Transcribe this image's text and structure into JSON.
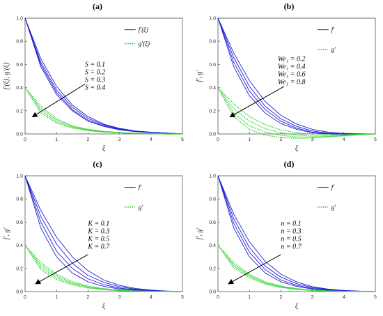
{
  "colors": {
    "f_series": "#1f1fd6",
    "g_series": "#35d335",
    "axis": "#555555",
    "arrow": "#000000"
  },
  "chart_data": [
    {
      "type": "line",
      "panel_label": "(a)",
      "xlabel": "ξ",
      "ylabel": "f′(ξ), g′(ξ)",
      "xlim": [
        0,
        5
      ],
      "ylim": [
        0,
        1.0
      ],
      "xticks": [
        "0",
        "1",
        "2",
        "3",
        "4",
        "5"
      ],
      "yticks": [
        "0.0",
        "0.2",
        "0.4",
        "0.6",
        "0.8",
        "1.0"
      ],
      "legend": [
        {
          "label": "f′(ξ)",
          "style": "solid"
        },
        {
          "label": "g′(ξ)",
          "style": "dotted"
        }
      ],
      "param_labels": [
        "S = 0.1",
        "S = 0.2",
        "S = 0.3",
        "S = 0.4"
      ],
      "series": [
        {
          "group": "f",
          "param": 0.1,
          "x": [
            0,
            0.5,
            1,
            1.5,
            2,
            2.5,
            3,
            3.5,
            4,
            4.5,
            5
          ],
          "y": [
            1.0,
            0.58,
            0.34,
            0.2,
            0.11,
            0.065,
            0.035,
            0.02,
            0.012,
            0.006,
            0.0
          ]
        },
        {
          "group": "f",
          "param": 0.2,
          "x": [
            0,
            0.5,
            1,
            1.5,
            2,
            2.5,
            3,
            3.5,
            4,
            4.5,
            5
          ],
          "y": [
            1.0,
            0.6,
            0.36,
            0.21,
            0.12,
            0.07,
            0.04,
            0.022,
            0.013,
            0.007,
            0.0
          ]
        },
        {
          "group": "f",
          "param": 0.3,
          "x": [
            0,
            0.5,
            1,
            1.5,
            2,
            2.5,
            3,
            3.5,
            4,
            4.5,
            5
          ],
          "y": [
            1.0,
            0.62,
            0.38,
            0.23,
            0.135,
            0.078,
            0.044,
            0.024,
            0.014,
            0.007,
            0.0
          ]
        },
        {
          "group": "f",
          "param": 0.4,
          "x": [
            0,
            0.5,
            1,
            1.5,
            2,
            2.5,
            3,
            3.5,
            4,
            4.5,
            5
          ],
          "y": [
            1.0,
            0.65,
            0.41,
            0.25,
            0.15,
            0.085,
            0.048,
            0.026,
            0.015,
            0.008,
            0.0
          ]
        },
        {
          "group": "g",
          "param": 0.1,
          "x": [
            0,
            0.5,
            1,
            1.5,
            2,
            2.5,
            3,
            3.5,
            4,
            4.5,
            5
          ],
          "y": [
            0.4,
            0.24,
            0.13,
            0.07,
            0.04,
            0.022,
            0.012,
            0.006,
            0.003,
            0.0,
            0.0
          ]
        },
        {
          "group": "g",
          "param": 0.2,
          "x": [
            0,
            0.5,
            1,
            1.5,
            2,
            2.5,
            3,
            3.5,
            4,
            4.5,
            5
          ],
          "y": [
            0.4,
            0.22,
            0.12,
            0.065,
            0.036,
            0.02,
            0.011,
            0.005,
            0.003,
            0.0,
            0.0
          ]
        },
        {
          "group": "g",
          "param": 0.3,
          "x": [
            0,
            0.5,
            1,
            1.5,
            2,
            2.5,
            3,
            3.5,
            4,
            4.5,
            5
          ],
          "y": [
            0.4,
            0.2,
            0.105,
            0.058,
            0.032,
            0.018,
            0.01,
            0.005,
            0.002,
            0.0,
            0.0
          ]
        },
        {
          "group": "g",
          "param": 0.4,
          "x": [
            0,
            0.5,
            1,
            1.5,
            2,
            2.5,
            3,
            3.5,
            4,
            4.5,
            5
          ],
          "y": [
            0.4,
            0.18,
            0.095,
            0.052,
            0.028,
            0.016,
            0.009,
            0.004,
            0.002,
            0.0,
            0.0
          ]
        }
      ]
    },
    {
      "type": "line",
      "panel_label": "(b)",
      "xlabel": "ξ",
      "ylabel": "f′, g′",
      "xlim": [
        0,
        5
      ],
      "ylim": [
        0,
        1.0
      ],
      "xticks": [
        "0",
        "1",
        "2",
        "3",
        "4",
        "5"
      ],
      "yticks": [
        "0.0",
        "0.2",
        "0.4",
        "0.6",
        "0.8",
        "1.0"
      ],
      "legend": [
        {
          "label": "f′",
          "style": "solid"
        },
        {
          "label": "g′",
          "style": "dotted"
        }
      ],
      "param_labels": [
        "We₁ = 0.2",
        "We₁ = 0.4",
        "We₁ = 0.6",
        "We₁ = 0.8"
      ],
      "series": [
        {
          "group": "f",
          "param": 0.2,
          "x": [
            0,
            0.5,
            1,
            1.5,
            2,
            2.5,
            3,
            3.5,
            4,
            4.5,
            5
          ],
          "y": [
            1.0,
            0.58,
            0.33,
            0.18,
            0.09,
            0.04,
            0.01,
            0.0,
            -0.005,
            -0.003,
            0.0
          ]
        },
        {
          "group": "f",
          "param": 0.4,
          "x": [
            0,
            0.5,
            1,
            1.5,
            2,
            2.5,
            3,
            3.5,
            4,
            4.5,
            5
          ],
          "y": [
            1.0,
            0.62,
            0.37,
            0.21,
            0.11,
            0.05,
            0.015,
            0.002,
            -0.003,
            -0.002,
            0.0
          ]
        },
        {
          "group": "f",
          "param": 0.6,
          "x": [
            0,
            0.5,
            1,
            1.5,
            2,
            2.5,
            3,
            3.5,
            4,
            4.5,
            5
          ],
          "y": [
            1.0,
            0.66,
            0.41,
            0.24,
            0.13,
            0.065,
            0.025,
            0.007,
            0.0,
            0.0,
            0.0
          ]
        },
        {
          "group": "f",
          "param": 0.8,
          "x": [
            0,
            0.5,
            1,
            1.5,
            2,
            2.5,
            3,
            3.5,
            4,
            4.5,
            5
          ],
          "y": [
            1.0,
            0.7,
            0.46,
            0.28,
            0.16,
            0.085,
            0.04,
            0.015,
            0.005,
            0.002,
            0.0
          ]
        },
        {
          "group": "g",
          "param": 0.2,
          "x": [
            0,
            0.5,
            1,
            1.5,
            2,
            2.5,
            3,
            3.5,
            4,
            4.5,
            5
          ],
          "y": [
            0.4,
            0.26,
            0.15,
            0.08,
            0.035,
            0.01,
            0.0,
            -0.005,
            -0.004,
            -0.002,
            0.0
          ]
        },
        {
          "group": "g",
          "param": 0.4,
          "x": [
            0,
            0.5,
            1,
            1.5,
            2,
            2.5,
            3,
            3.5,
            4,
            4.5,
            5
          ],
          "y": [
            0.4,
            0.22,
            0.11,
            0.045,
            0.01,
            -0.01,
            -0.018,
            -0.016,
            -0.01,
            -0.004,
            0.0
          ]
        },
        {
          "group": "g",
          "param": 0.6,
          "x": [
            0,
            0.5,
            1,
            1.5,
            2,
            2.5,
            3,
            3.5,
            4,
            4.5,
            5
          ],
          "y": [
            0.4,
            0.18,
            0.07,
            0.015,
            -0.012,
            -0.025,
            -0.028,
            -0.022,
            -0.014,
            -0.006,
            0.0
          ]
        },
        {
          "group": "g",
          "param": 0.8,
          "x": [
            0,
            0.5,
            1,
            1.5,
            2,
            2.5,
            3,
            3.5,
            4,
            4.5,
            5
          ],
          "y": [
            0.4,
            0.15,
            0.04,
            -0.01,
            -0.03,
            -0.038,
            -0.035,
            -0.026,
            -0.016,
            -0.007,
            0.0
          ]
        }
      ]
    },
    {
      "type": "line",
      "panel_label": "(c)",
      "xlabel": "ξ",
      "ylabel": "f′, g′",
      "xlim": [
        0,
        5
      ],
      "ylim": [
        0,
        1.0
      ],
      "xticks": [
        "0",
        "1",
        "2",
        "3",
        "4",
        "5"
      ],
      "yticks": [
        "0.0",
        "0.2",
        "0.4",
        "0.6",
        "0.8",
        "1.0"
      ],
      "legend": [
        {
          "label": "f′",
          "style": "solid"
        },
        {
          "label": "g′",
          "style": "dotted"
        }
      ],
      "param_labels": [
        "K = 0.1",
        "K = 0.3",
        "K = 0.5",
        "K = 0.7"
      ],
      "series": [
        {
          "group": "f",
          "param": 0.1,
          "x": [
            0,
            0.5,
            1,
            1.5,
            2,
            2.5,
            3,
            3.5,
            4,
            4.5,
            5
          ],
          "y": [
            1.0,
            0.55,
            0.3,
            0.16,
            0.085,
            0.045,
            0.022,
            0.01,
            0.005,
            0.002,
            0.0
          ]
        },
        {
          "group": "f",
          "param": 0.3,
          "x": [
            0,
            0.5,
            1,
            1.5,
            2,
            2.5,
            3,
            3.5,
            4,
            4.5,
            5
          ],
          "y": [
            1.0,
            0.6,
            0.35,
            0.2,
            0.11,
            0.06,
            0.03,
            0.015,
            0.007,
            0.003,
            0.0
          ]
        },
        {
          "group": "f",
          "param": 0.5,
          "x": [
            0,
            0.5,
            1,
            1.5,
            2,
            2.5,
            3,
            3.5,
            4,
            4.5,
            5
          ],
          "y": [
            1.0,
            0.65,
            0.41,
            0.245,
            0.14,
            0.08,
            0.042,
            0.021,
            0.01,
            0.004,
            0.0
          ]
        },
        {
          "group": "f",
          "param": 0.7,
          "x": [
            0,
            0.5,
            1,
            1.5,
            2,
            2.5,
            3,
            3.5,
            4,
            4.5,
            5
          ],
          "y": [
            1.0,
            0.7,
            0.47,
            0.3,
            0.18,
            0.1,
            0.055,
            0.028,
            0.013,
            0.005,
            0.0
          ]
        },
        {
          "group": "g",
          "param": 0.1,
          "x": [
            0,
            0.5,
            1,
            1.5,
            2,
            2.5,
            3,
            3.5,
            4,
            4.5,
            5
          ],
          "y": [
            0.4,
            0.25,
            0.15,
            0.085,
            0.048,
            0.026,
            0.013,
            0.006,
            0.003,
            0.001,
            0.0
          ]
        },
        {
          "group": "g",
          "param": 0.3,
          "x": [
            0,
            0.5,
            1,
            1.5,
            2,
            2.5,
            3,
            3.5,
            4,
            4.5,
            5
          ],
          "y": [
            0.4,
            0.23,
            0.135,
            0.076,
            0.042,
            0.022,
            0.011,
            0.005,
            0.002,
            0.001,
            0.0
          ]
        },
        {
          "group": "g",
          "param": 0.5,
          "x": [
            0,
            0.5,
            1,
            1.5,
            2,
            2.5,
            3,
            3.5,
            4,
            4.5,
            5
          ],
          "y": [
            0.4,
            0.21,
            0.12,
            0.067,
            0.036,
            0.019,
            0.009,
            0.004,
            0.002,
            0.001,
            0.0
          ]
        },
        {
          "group": "g",
          "param": 0.7,
          "x": [
            0,
            0.5,
            1,
            1.5,
            2,
            2.5,
            3,
            3.5,
            4,
            4.5,
            5
          ],
          "y": [
            0.4,
            0.19,
            0.105,
            0.058,
            0.031,
            0.016,
            0.008,
            0.004,
            0.002,
            0.001,
            0.0
          ]
        }
      ]
    },
    {
      "type": "line",
      "panel_label": "(d)",
      "xlabel": "ξ",
      "ylabel": "f′, g′",
      "xlim": [
        0,
        5
      ],
      "ylim": [
        0,
        1.0
      ],
      "xticks": [
        "0",
        "1",
        "2",
        "3",
        "4",
        "5"
      ],
      "yticks": [
        "0.0",
        "0.2",
        "0.4",
        "0.6",
        "0.8",
        "1.0"
      ],
      "legend": [
        {
          "label": "f′",
          "style": "solid"
        },
        {
          "label": "g′",
          "style": "dotted"
        }
      ],
      "param_labels": [
        "n = 0.1",
        "n = 0.3",
        "n = 0.5",
        "n = 0.7"
      ],
      "series": [
        {
          "group": "f",
          "param": 0.1,
          "x": [
            0,
            0.5,
            1,
            1.5,
            2,
            2.5,
            3,
            3.5,
            4,
            4.5,
            5
          ],
          "y": [
            1.0,
            0.55,
            0.3,
            0.16,
            0.085,
            0.045,
            0.022,
            0.01,
            0.005,
            0.002,
            0.0
          ]
        },
        {
          "group": "f",
          "param": 0.3,
          "x": [
            0,
            0.5,
            1,
            1.5,
            2,
            2.5,
            3,
            3.5,
            4,
            4.5,
            5
          ],
          "y": [
            1.0,
            0.59,
            0.34,
            0.19,
            0.1,
            0.055,
            0.028,
            0.013,
            0.006,
            0.002,
            0.0
          ]
        },
        {
          "group": "f",
          "param": 0.5,
          "x": [
            0,
            0.5,
            1,
            1.5,
            2,
            2.5,
            3,
            3.5,
            4,
            4.5,
            5
          ],
          "y": [
            1.0,
            0.63,
            0.38,
            0.22,
            0.125,
            0.068,
            0.035,
            0.017,
            0.008,
            0.003,
            0.0
          ]
        },
        {
          "group": "f",
          "param": 0.7,
          "x": [
            0,
            0.5,
            1,
            1.5,
            2,
            2.5,
            3,
            3.5,
            4,
            4.5,
            5
          ],
          "y": [
            1.0,
            0.67,
            0.43,
            0.26,
            0.15,
            0.083,
            0.043,
            0.021,
            0.01,
            0.004,
            0.0
          ]
        },
        {
          "group": "g",
          "param": 0.1,
          "x": [
            0,
            0.5,
            1,
            1.5,
            2,
            2.5,
            3,
            3.5,
            4,
            4.5,
            5
          ],
          "y": [
            0.4,
            0.25,
            0.15,
            0.085,
            0.048,
            0.026,
            0.013,
            0.006,
            0.003,
            0.001,
            0.0
          ]
        },
        {
          "group": "g",
          "param": 0.3,
          "x": [
            0,
            0.5,
            1,
            1.5,
            2,
            2.5,
            3,
            3.5,
            4,
            4.5,
            5
          ],
          "y": [
            0.4,
            0.235,
            0.14,
            0.078,
            0.043,
            0.023,
            0.012,
            0.005,
            0.002,
            0.001,
            0.0
          ]
        },
        {
          "group": "g",
          "param": 0.5,
          "x": [
            0,
            0.5,
            1,
            1.5,
            2,
            2.5,
            3,
            3.5,
            4,
            4.5,
            5
          ],
          "y": [
            0.4,
            0.22,
            0.13,
            0.071,
            0.039,
            0.021,
            0.01,
            0.005,
            0.002,
            0.001,
            0.0
          ]
        },
        {
          "group": "g",
          "param": 0.7,
          "x": [
            0,
            0.5,
            1,
            1.5,
            2,
            2.5,
            3,
            3.5,
            4,
            4.5,
            5
          ],
          "y": [
            0.4,
            0.205,
            0.12,
            0.065,
            0.035,
            0.019,
            0.009,
            0.004,
            0.002,
            0.001,
            0.0
          ]
        }
      ]
    }
  ]
}
